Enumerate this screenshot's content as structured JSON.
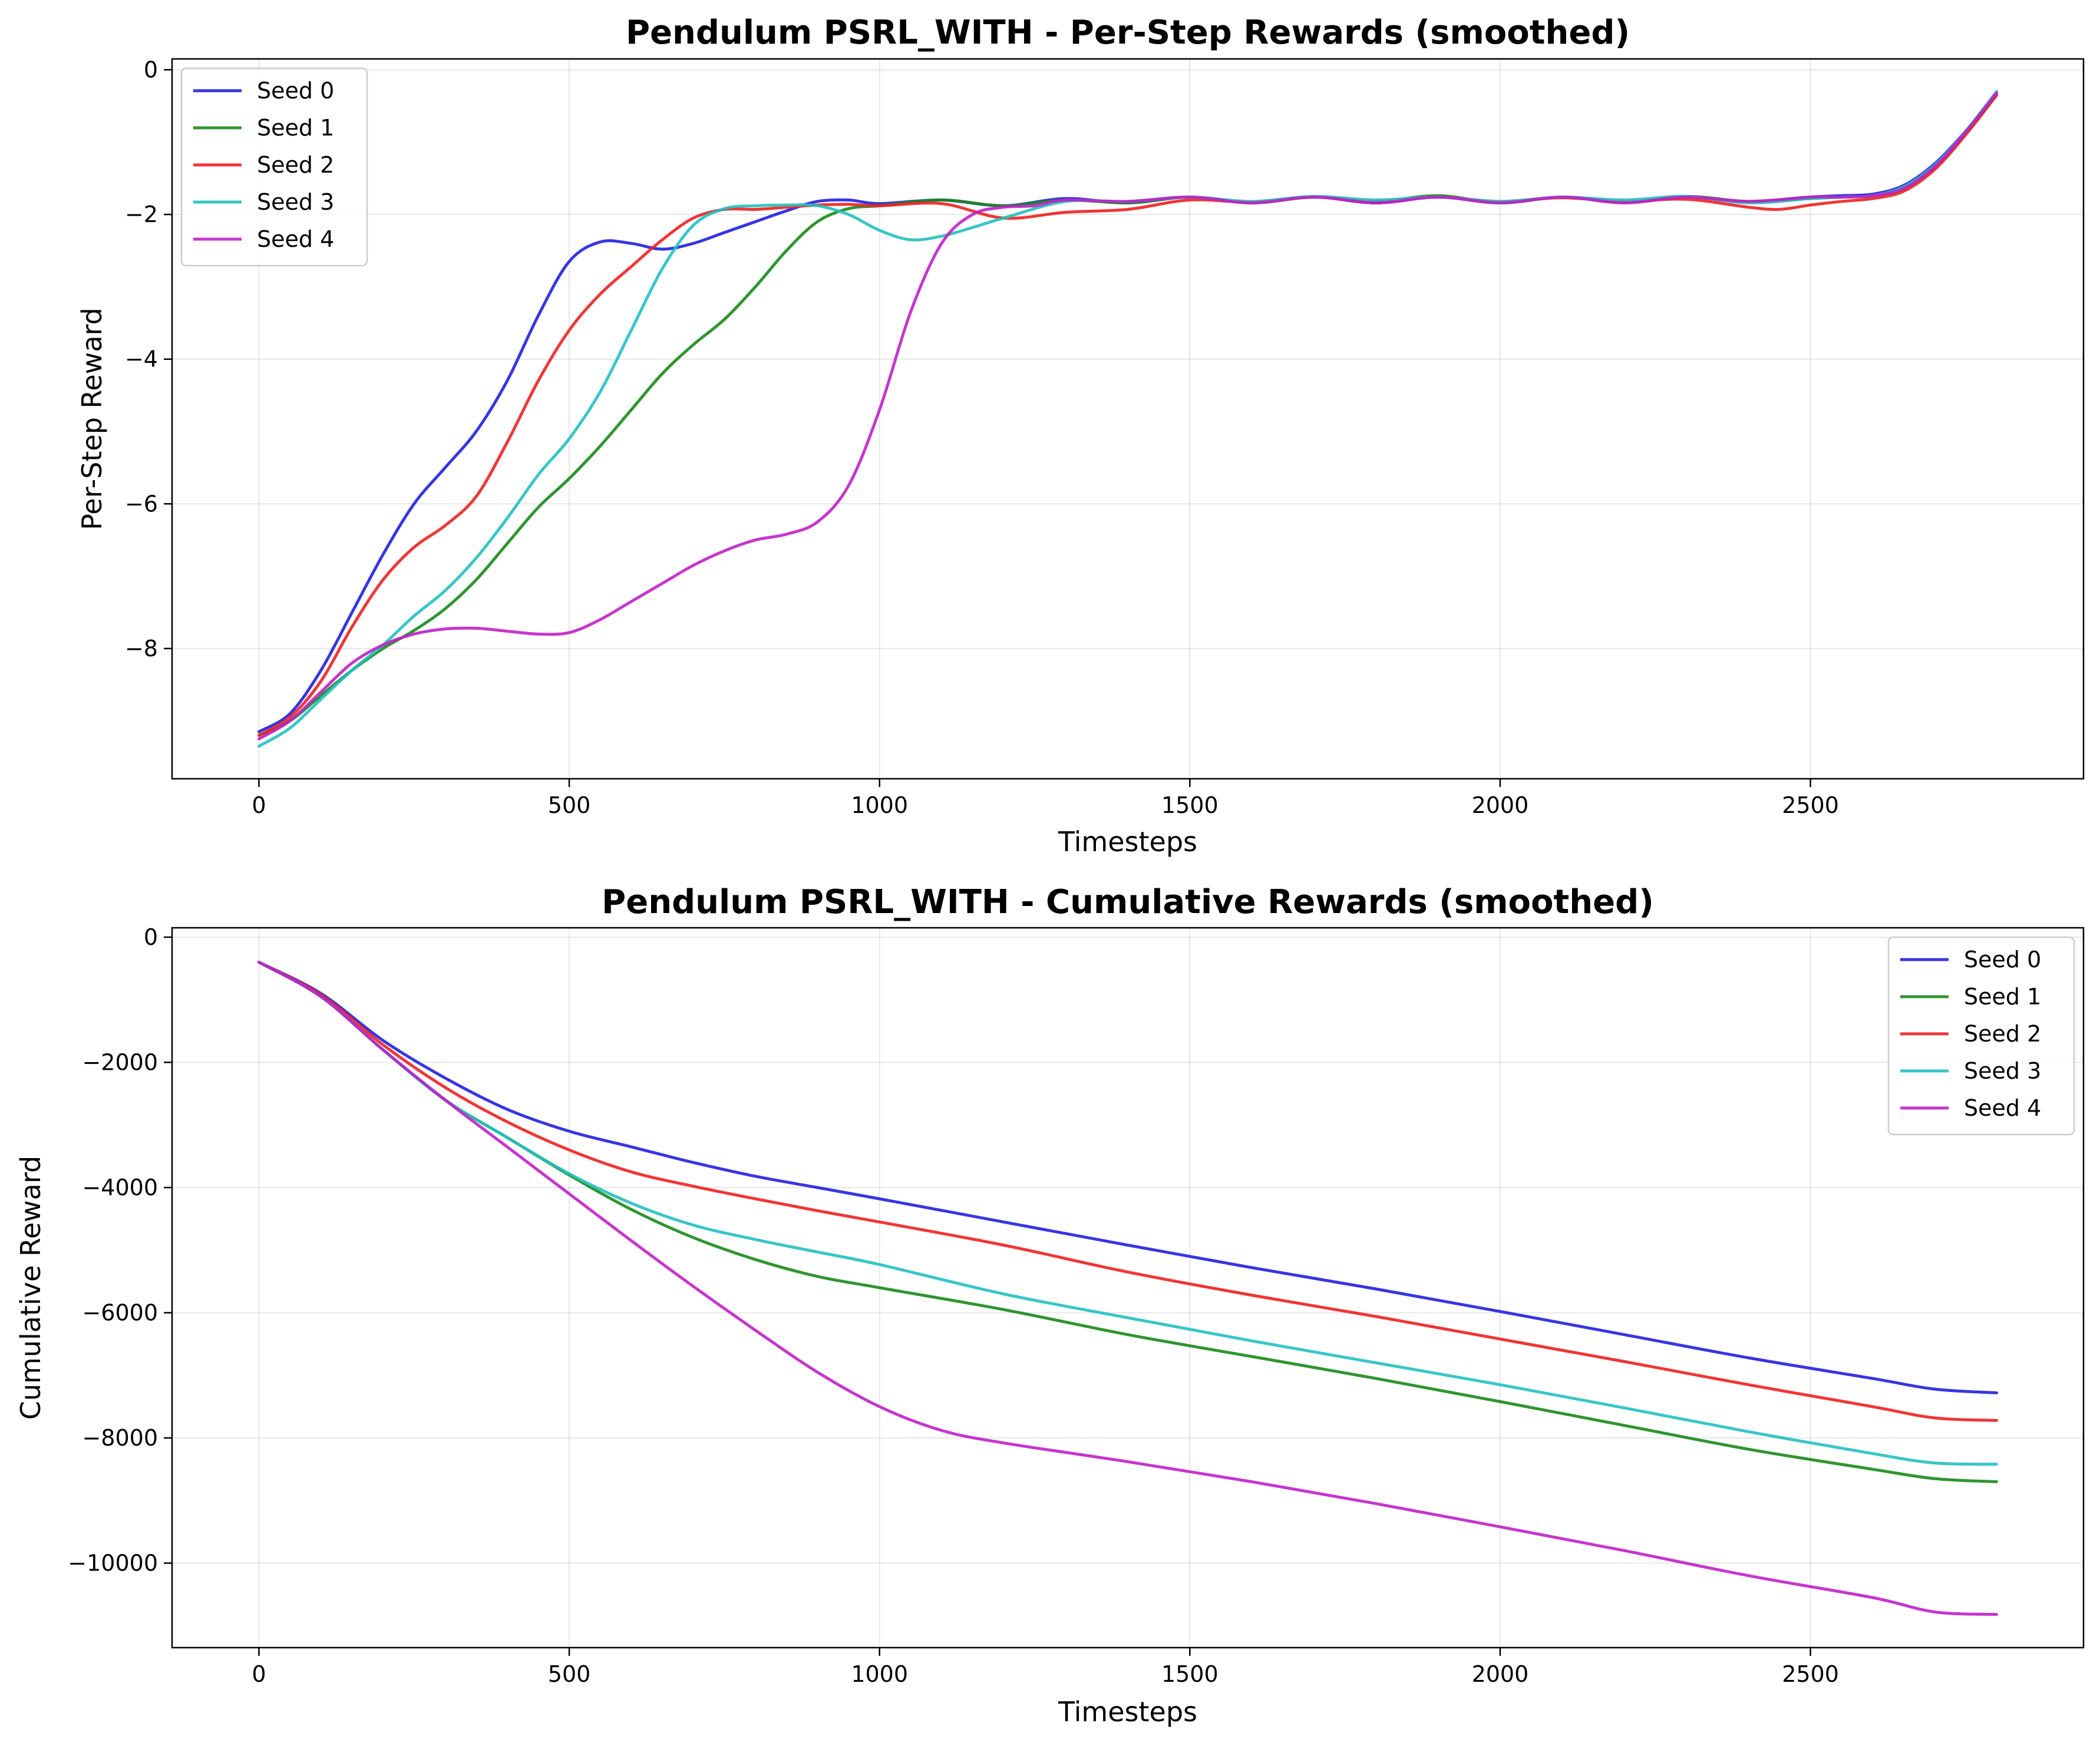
{
  "chart_data": [
    {
      "type": "line",
      "title": "Pendulum PSRL_WITH - Per-Step Rewards (smoothed)",
      "xlabel": "Timesteps",
      "ylabel": "Per-Step Reward",
      "xlim": [
        -140,
        2940
      ],
      "ylim": [
        -9.8,
        0.15
      ],
      "xticks": [
        0,
        500,
        1000,
        1500,
        2000,
        2500
      ],
      "yticks": [
        0,
        -2,
        -4,
        -6,
        -8
      ],
      "grid": true,
      "legend_position": "upper-left",
      "series": [
        {
          "name": "Seed 0",
          "color": "#2020e0",
          "x": [
            0,
            50,
            100,
            150,
            200,
            250,
            300,
            350,
            400,
            450,
            500,
            550,
            600,
            650,
            700,
            750,
            800,
            850,
            900,
            950,
            1000,
            1100,
            1200,
            1300,
            1400,
            1500,
            1600,
            1700,
            1800,
            1900,
            2000,
            2100,
            2200,
            2300,
            2400,
            2500,
            2550,
            2600,
            2650,
            2700,
            2750,
            2800
          ],
          "y": [
            -9.15,
            -8.9,
            -8.3,
            -7.5,
            -6.7,
            -6.0,
            -5.5,
            -5.0,
            -4.3,
            -3.4,
            -2.65,
            -2.38,
            -2.4,
            -2.48,
            -2.4,
            -2.25,
            -2.1,
            -1.95,
            -1.82,
            -1.8,
            -1.85,
            -1.8,
            -1.88,
            -1.78,
            -1.84,
            -1.76,
            -1.84,
            -1.76,
            -1.84,
            -1.76,
            -1.84,
            -1.76,
            -1.83,
            -1.76,
            -1.82,
            -1.76,
            -1.74,
            -1.72,
            -1.6,
            -1.3,
            -0.85,
            -0.35
          ]
        },
        {
          "name": "Seed 1",
          "color": "#1a8a1a",
          "x": [
            0,
            50,
            100,
            150,
            200,
            250,
            300,
            350,
            400,
            450,
            500,
            550,
            600,
            650,
            700,
            750,
            800,
            850,
            900,
            950,
            1000,
            1100,
            1200,
            1300,
            1400,
            1500,
            1600,
            1700,
            1800,
            1900,
            2000,
            2100,
            2200,
            2300,
            2400,
            2500,
            2550,
            2600,
            2650,
            2700,
            2750,
            2800
          ],
          "y": [
            -9.2,
            -9.0,
            -8.65,
            -8.3,
            -8.0,
            -7.75,
            -7.45,
            -7.05,
            -6.55,
            -6.05,
            -5.65,
            -5.2,
            -4.7,
            -4.2,
            -3.8,
            -3.45,
            -3.0,
            -2.5,
            -2.1,
            -1.92,
            -1.88,
            -1.8,
            -1.88,
            -1.8,
            -1.84,
            -1.76,
            -1.84,
            -1.76,
            -1.82,
            -1.74,
            -1.84,
            -1.76,
            -1.83,
            -1.75,
            -1.82,
            -1.78,
            -1.76,
            -1.74,
            -1.65,
            -1.35,
            -0.88,
            -0.35
          ]
        },
        {
          "name": "Seed 2",
          "color": "#ee2020",
          "x": [
            0,
            50,
            100,
            150,
            200,
            250,
            300,
            350,
            400,
            450,
            500,
            550,
            600,
            650,
            700,
            750,
            800,
            850,
            900,
            950,
            1000,
            1100,
            1200,
            1300,
            1400,
            1500,
            1600,
            1700,
            1800,
            1900,
            2000,
            2100,
            2200,
            2300,
            2400,
            2450,
            2500,
            2550,
            2600,
            2650,
            2700,
            2750,
            2800
          ],
          "y": [
            -9.2,
            -8.95,
            -8.45,
            -7.7,
            -7.05,
            -6.6,
            -6.3,
            -5.9,
            -5.15,
            -4.3,
            -3.6,
            -3.1,
            -2.72,
            -2.35,
            -2.05,
            -1.93,
            -1.93,
            -1.9,
            -1.87,
            -1.86,
            -1.88,
            -1.85,
            -2.05,
            -1.97,
            -1.93,
            -1.8,
            -1.83,
            -1.76,
            -1.82,
            -1.76,
            -1.82,
            -1.77,
            -1.82,
            -1.79,
            -1.9,
            -1.93,
            -1.87,
            -1.82,
            -1.78,
            -1.68,
            -1.38,
            -0.9,
            -0.35
          ]
        },
        {
          "name": "Seed 3",
          "color": "#22c0c0",
          "x": [
            0,
            50,
            100,
            150,
            200,
            250,
            300,
            350,
            400,
            450,
            500,
            550,
            600,
            650,
            700,
            750,
            800,
            850,
            900,
            950,
            1000,
            1050,
            1100,
            1150,
            1200,
            1300,
            1400,
            1500,
            1600,
            1700,
            1800,
            1900,
            2000,
            2100,
            2200,
            2300,
            2400,
            2500,
            2550,
            2600,
            2650,
            2700,
            2750,
            2800
          ],
          "y": [
            -9.35,
            -9.1,
            -8.7,
            -8.3,
            -7.95,
            -7.55,
            -7.2,
            -6.75,
            -6.2,
            -5.6,
            -5.1,
            -4.45,
            -3.6,
            -2.75,
            -2.15,
            -1.92,
            -1.88,
            -1.87,
            -1.88,
            -2.0,
            -2.22,
            -2.35,
            -2.3,
            -2.18,
            -2.05,
            -1.82,
            -1.82,
            -1.76,
            -1.82,
            -1.75,
            -1.8,
            -1.76,
            -1.82,
            -1.76,
            -1.8,
            -1.75,
            -1.84,
            -1.78,
            -1.76,
            -1.74,
            -1.62,
            -1.32,
            -0.85,
            -0.3
          ]
        },
        {
          "name": "Seed 4",
          "color": "#c020c8",
          "x": [
            0,
            50,
            100,
            150,
            200,
            250,
            300,
            350,
            400,
            450,
            500,
            550,
            600,
            650,
            700,
            750,
            800,
            850,
            900,
            950,
            1000,
            1050,
            1100,
            1150,
            1200,
            1250,
            1300,
            1400,
            1500,
            1600,
            1700,
            1800,
            1900,
            2000,
            2100,
            2200,
            2300,
            2400,
            2500,
            2550,
            2600,
            2650,
            2700,
            2750,
            2800
          ],
          "y": [
            -9.25,
            -9.0,
            -8.6,
            -8.2,
            -7.95,
            -7.8,
            -7.73,
            -7.72,
            -7.76,
            -7.8,
            -7.78,
            -7.6,
            -7.35,
            -7.1,
            -6.85,
            -6.65,
            -6.5,
            -6.42,
            -6.25,
            -5.75,
            -4.7,
            -3.35,
            -2.4,
            -2.0,
            -1.9,
            -1.88,
            -1.8,
            -1.82,
            -1.76,
            -1.84,
            -1.76,
            -1.84,
            -1.76,
            -1.84,
            -1.76,
            -1.84,
            -1.76,
            -1.82,
            -1.76,
            -1.76,
            -1.74,
            -1.64,
            -1.34,
            -0.86,
            -0.32
          ]
        }
      ]
    },
    {
      "type": "line",
      "title": "Pendulum PSRL_WITH - Cumulative Rewards (smoothed)",
      "xlabel": "Timesteps",
      "ylabel": "Cumulative Reward",
      "xlim": [
        -140,
        2940
      ],
      "ylim": [
        -11350,
        150
      ],
      "xticks": [
        0,
        500,
        1000,
        1500,
        2000,
        2500
      ],
      "yticks": [
        0,
        -2000,
        -4000,
        -6000,
        -8000,
        -10000
      ],
      "grid": true,
      "legend_position": "upper-right",
      "series": [
        {
          "name": "Seed 0",
          "color": "#2020e0",
          "x": [
            0,
            100,
            200,
            300,
            400,
            500,
            600,
            700,
            800,
            900,
            1000,
            1200,
            1400,
            1600,
            1800,
            2000,
            2200,
            2400,
            2600,
            2700,
            2800
          ],
          "y": [
            -400,
            -900,
            -1650,
            -2250,
            -2750,
            -3100,
            -3350,
            -3600,
            -3820,
            -4000,
            -4180,
            -4550,
            -4920,
            -5280,
            -5620,
            -5980,
            -6350,
            -6720,
            -7050,
            -7220,
            -7280
          ]
        },
        {
          "name": "Seed 1",
          "color": "#1a8a1a",
          "x": [
            0,
            100,
            200,
            300,
            400,
            500,
            600,
            700,
            800,
            900,
            1000,
            1200,
            1400,
            1600,
            1800,
            2000,
            2200,
            2400,
            2600,
            2700,
            2800
          ],
          "y": [
            -400,
            -950,
            -1800,
            -2600,
            -3200,
            -3800,
            -4350,
            -4800,
            -5150,
            -5420,
            -5600,
            -5950,
            -6350,
            -6700,
            -7050,
            -7420,
            -7800,
            -8180,
            -8500,
            -8650,
            -8700
          ]
        },
        {
          "name": "Seed 2",
          "color": "#ee2020",
          "x": [
            0,
            100,
            200,
            300,
            400,
            500,
            600,
            700,
            800,
            900,
            1000,
            1200,
            1400,
            1600,
            1800,
            2000,
            2200,
            2400,
            2600,
            2700,
            2800
          ],
          "y": [
            -400,
            -920,
            -1720,
            -2400,
            -2950,
            -3400,
            -3750,
            -3980,
            -4180,
            -4370,
            -4550,
            -4920,
            -5350,
            -5720,
            -6060,
            -6420,
            -6780,
            -7150,
            -7500,
            -7680,
            -7720
          ]
        },
        {
          "name": "Seed 3",
          "color": "#22c0c0",
          "x": [
            0,
            100,
            200,
            300,
            400,
            500,
            600,
            700,
            800,
            900,
            1000,
            1200,
            1400,
            1600,
            1800,
            2000,
            2200,
            2400,
            2600,
            2700,
            2800
          ],
          "y": [
            -400,
            -950,
            -1800,
            -2600,
            -3200,
            -3780,
            -4250,
            -4600,
            -4830,
            -5030,
            -5230,
            -5700,
            -6080,
            -6450,
            -6800,
            -7150,
            -7520,
            -7900,
            -8250,
            -8400,
            -8420
          ]
        },
        {
          "name": "Seed 4",
          "color": "#c020c8",
          "x": [
            0,
            100,
            200,
            300,
            400,
            500,
            600,
            700,
            800,
            900,
            1000,
            1100,
            1200,
            1400,
            1600,
            1800,
            2000,
            2200,
            2400,
            2600,
            2700,
            2800
          ],
          "y": [
            -400,
            -950,
            -1800,
            -2600,
            -3350,
            -4100,
            -4850,
            -5580,
            -6280,
            -6950,
            -7500,
            -7880,
            -8080,
            -8380,
            -8700,
            -9050,
            -9420,
            -9800,
            -10200,
            -10550,
            -10780,
            -10820
          ]
        }
      ]
    }
  ]
}
